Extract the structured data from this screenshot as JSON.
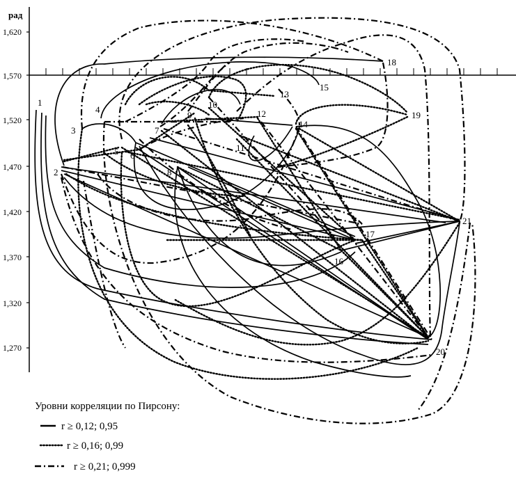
{
  "diagram": {
    "y_unit": "рад",
    "y_ticks": [
      "1,620",
      "1,570",
      "1,520",
      "1,470",
      "1,420",
      "1,370",
      "1,320",
      "1,270"
    ],
    "nodes": [
      {
        "id": "1",
        "label": "1"
      },
      {
        "id": "2",
        "label": "2"
      },
      {
        "id": "3",
        "label": "3"
      },
      {
        "id": "4",
        "label": "4"
      },
      {
        "id": "5",
        "label": "5"
      },
      {
        "id": "6",
        "label": "6"
      },
      {
        "id": "7",
        "label": "7"
      },
      {
        "id": "8",
        "label": "8"
      },
      {
        "id": "9",
        "label": "9"
      },
      {
        "id": "10",
        "label": "10"
      },
      {
        "id": "11",
        "label": "11"
      },
      {
        "id": "12",
        "label": "12"
      },
      {
        "id": "13",
        "label": "13"
      },
      {
        "id": "14",
        "label": "14"
      },
      {
        "id": "15",
        "label": "15"
      },
      {
        "id": "16",
        "label": "16"
      },
      {
        "id": "17",
        "label": "17"
      },
      {
        "id": "18",
        "label": "18"
      },
      {
        "id": "19",
        "label": "19"
      },
      {
        "id": "20",
        "label": "20"
      },
      {
        "id": "21",
        "label": "21"
      }
    ]
  },
  "legend": {
    "title": "Уровни корреляции по Пирсону:",
    "items": [
      {
        "style": "solid",
        "label": "r ≥ 0,12; 0,95"
      },
      {
        "style": "dotted",
        "label": "r ≥ 0,16; 0,99"
      },
      {
        "style": "dashdot",
        "label": "r ≥ 0,21; 0,999"
      }
    ]
  }
}
